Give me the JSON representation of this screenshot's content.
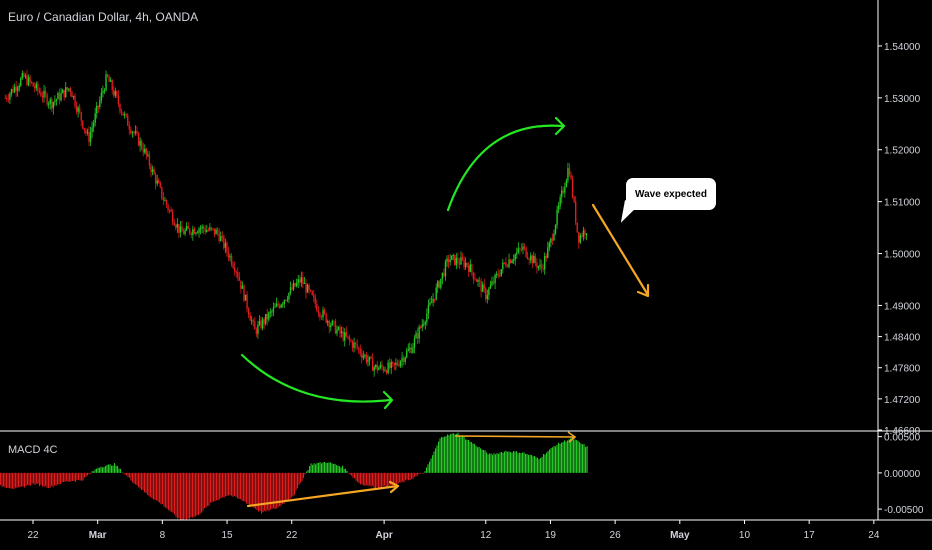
{
  "chart_title": "Euro / Canadian Dollar, 4h, OANDA",
  "macd_title": "MACD 4C",
  "annotation_text": "Wave expected",
  "colors": {
    "up": "#26c825",
    "down": "#e01c1c",
    "arrow_green": "#23e823",
    "arrow_orange": "#f5a623",
    "text": "#d1d4dc",
    "axis_line": "#ffffff"
  },
  "chart_data": [
    {
      "type": "candlestick",
      "title": "Euro / Canadian Dollar, 4h, OANDA",
      "ylim": [
        1.466,
        1.545
      ],
      "y_ticks": [
        "1.54000",
        "1.53000",
        "1.52000",
        "1.51000",
        "1.50000",
        "1.49000",
        "1.48400",
        "1.47800",
        "1.47200",
        "1.46600"
      ],
      "x_ticks": [
        "22",
        "Mar",
        "8",
        "15",
        "22",
        "Apr",
        "12",
        "19",
        "26",
        "May",
        "10",
        "17",
        "24"
      ],
      "close_path": [
        [
          "Feb 19",
          1.53
        ],
        [
          "Feb 21",
          1.534
        ],
        [
          "Feb 24",
          1.529
        ],
        [
          "Feb 26",
          1.532
        ],
        [
          "Feb 28",
          1.522
        ],
        [
          "Mar 2",
          1.534
        ],
        [
          "Mar 4",
          1.526
        ],
        [
          "Mar 6",
          1.52
        ],
        [
          "Mar 8",
          1.511
        ],
        [
          "Mar 10",
          1.504
        ],
        [
          "Mar 12",
          1.505
        ],
        [
          "Mar 14",
          1.504
        ],
        [
          "Mar 16",
          1.497
        ],
        [
          "Mar 18",
          1.485
        ],
        [
          "Mar 20",
          1.489
        ],
        [
          "Mar 23",
          1.495
        ],
        [
          "Mar 25",
          1.489
        ],
        [
          "Mar 27",
          1.485
        ],
        [
          "Mar 29",
          1.482
        ],
        [
          "Mar 31",
          1.478
        ],
        [
          "Apr 2",
          1.478
        ],
        [
          "Apr 4",
          1.482
        ],
        [
          "Apr 6",
          1.49
        ],
        [
          "Apr 8",
          1.499
        ],
        [
          "Apr 10",
          1.498
        ],
        [
          "Apr 12",
          1.492
        ],
        [
          "Apr 14",
          1.498
        ],
        [
          "Apr 16",
          1.501
        ],
        [
          "Apr 18",
          1.497
        ],
        [
          "Apr 19",
          1.502
        ],
        [
          "Apr 21",
          1.517
        ],
        [
          "Apr 22",
          1.503
        ],
        [
          "Apr 23",
          1.505
        ]
      ]
    },
    {
      "type": "bar",
      "title": "MACD 4C",
      "ylim": [
        -0.0065,
        0.0055
      ],
      "y_ticks": [
        "0.00500",
        "0.00000",
        "-0.00500"
      ],
      "values": [
        -0.0018,
        -0.0022,
        -0.0015,
        -0.002,
        -0.0012,
        -0.001,
        0.0008,
        0.0012,
        -0.001,
        -0.003,
        -0.0045,
        -0.0065,
        -0.006,
        -0.004,
        -0.003,
        -0.004,
        -0.0055,
        -0.0048,
        -0.003,
        0.0012,
        0.0015,
        0.0008,
        -0.0015,
        -0.002,
        -0.0018,
        -0.001,
        0.0001,
        0.005,
        0.0055,
        0.004,
        0.0025,
        0.003,
        0.0028,
        0.002,
        0.0038,
        0.0048,
        0.0035
      ]
    }
  ]
}
